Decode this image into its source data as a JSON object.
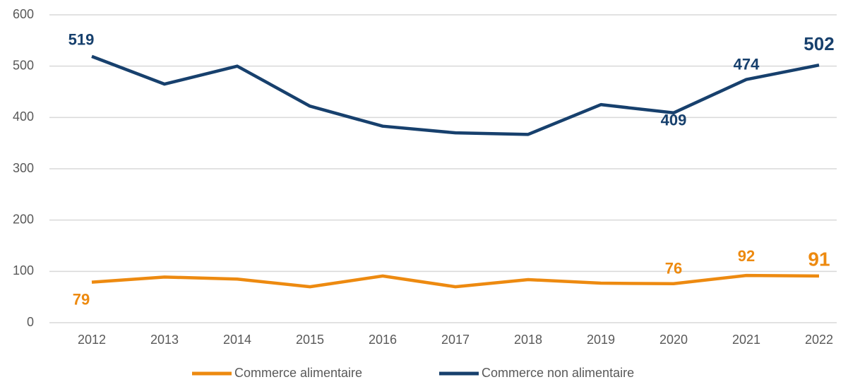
{
  "chart_data": {
    "type": "line",
    "x": [
      "2012",
      "2013",
      "2014",
      "2015",
      "2016",
      "2017",
      "2018",
      "2019",
      "2020",
      "2021",
      "2022"
    ],
    "series": [
      {
        "name": "Commerce alimentaire",
        "color": "#ed8a10",
        "values": [
          79,
          89,
          85,
          70,
          91,
          70,
          84,
          77,
          76,
          92,
          91
        ],
        "value_labels": [
          "79",
          null,
          null,
          null,
          null,
          null,
          null,
          null,
          "76",
          "92",
          "91"
        ]
      },
      {
        "name": "Commerce non alimentaire",
        "color": "#17406d",
        "values": [
          519,
          465,
          500,
          422,
          383,
          370,
          367,
          425,
          409,
          474,
          502
        ],
        "value_labels": [
          "519",
          null,
          null,
          null,
          null,
          null,
          null,
          null,
          "409",
          "474",
          "502"
        ]
      }
    ],
    "ylim": [
      0,
      600
    ],
    "yticks": [
      0,
      100,
      200,
      300,
      400,
      500,
      600
    ],
    "grid": true,
    "legend": "bottom"
  }
}
